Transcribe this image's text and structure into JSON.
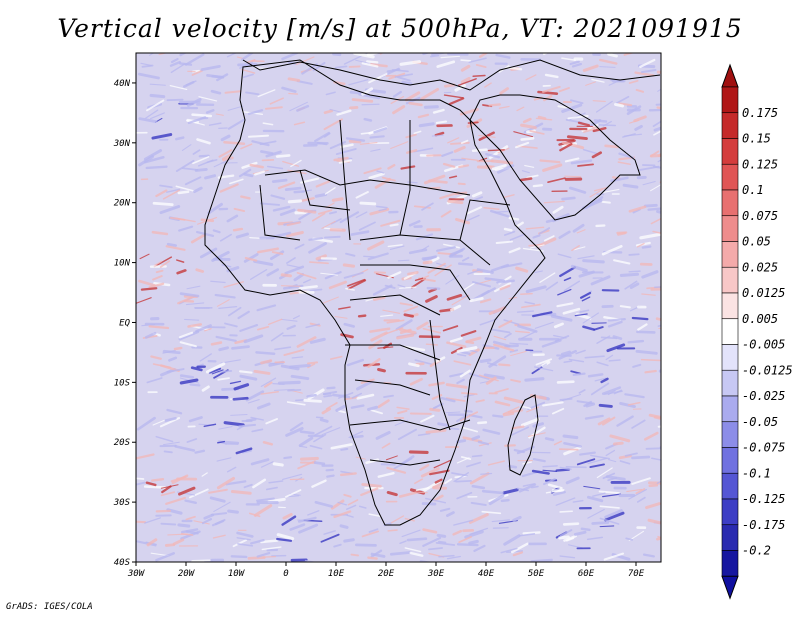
{
  "title": "Vertical velocity [m/s] at 500hPa, VT: 2021091915",
  "credit": "GrADS: IGES/COLA",
  "map": {
    "lon_range": [
      -30,
      75
    ],
    "lat_range": [
      -40,
      45
    ],
    "x_ticks": [
      {
        "lon": -30,
        "label": "30W"
      },
      {
        "lon": -20,
        "label": "20W"
      },
      {
        "lon": -10,
        "label": "10W"
      },
      {
        "lon": 0,
        "label": "0"
      },
      {
        "lon": 10,
        "label": "10E"
      },
      {
        "lon": 20,
        "label": "20E"
      },
      {
        "lon": 30,
        "label": "30E"
      },
      {
        "lon": 40,
        "label": "40E"
      },
      {
        "lon": 50,
        "label": "50E"
      },
      {
        "lon": 60,
        "label": "60E"
      },
      {
        "lon": 70,
        "label": "70E"
      }
    ],
    "y_ticks": [
      {
        "lat": 40,
        "label": "40N"
      },
      {
        "lat": 30,
        "label": "30N"
      },
      {
        "lat": 20,
        "label": "20N"
      },
      {
        "lat": 10,
        "label": "10N"
      },
      {
        "lat": 0,
        "label": "EQ"
      },
      {
        "lat": -10,
        "label": "10S"
      },
      {
        "lat": -20,
        "label": "20S"
      },
      {
        "lat": -30,
        "label": "30S"
      },
      {
        "lat": -40,
        "label": "40S"
      }
    ]
  },
  "colorbar": {
    "labels": [
      "0.175",
      "0.15",
      "0.125",
      "0.1",
      "0.075",
      "0.05",
      "0.025",
      "0.0125",
      "0.005",
      "-0.005",
      "-0.0125",
      "-0.025",
      "-0.05",
      "-0.075",
      "-0.1",
      "-0.125",
      "-0.175",
      "-0.2"
    ],
    "colors": [
      "#b01717",
      "#c52a2a",
      "#d43d3d",
      "#e05555",
      "#e87070",
      "#ef8c8c",
      "#f4aaaa",
      "#f8c7c7",
      "#fbe3e3",
      "#ffffff",
      "#e3e3fb",
      "#c7c8f4",
      "#aaabef",
      "#8c8de8",
      "#7071e0",
      "#5556d4",
      "#3d3ec5",
      "#2a2bb0",
      "#1717a0"
    ],
    "top_color": "#a01010",
    "bottom_color": "#1010a0"
  },
  "colors": {
    "positive_strong": "#c53030",
    "positive_weak": "#f3b8b8",
    "negative_weak": "#b8b8f0",
    "negative_strong": "#3030c0",
    "border": "#000000"
  }
}
